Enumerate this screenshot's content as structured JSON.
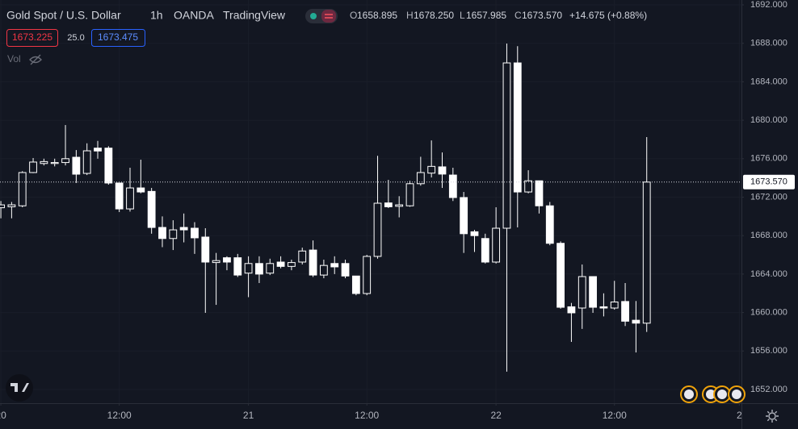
{
  "chart_data": {
    "type": "candlestick",
    "header": {
      "symbol": "Gold Spot / U.S. Dollar",
      "interval": "1h",
      "exchange": "OANDA",
      "source": "TradingView",
      "open_key": "O",
      "open": "1658.895",
      "high_key": "H",
      "high": "1678.250",
      "low_key": "L",
      "low": "1657.985",
      "close_key": "C",
      "close": "1673.570",
      "change": "+14.675 (+0.88%)"
    },
    "bid": "1673.225",
    "spread": "25.0",
    "ask": "1673.475",
    "volume_label": "Vol",
    "current_price": {
      "value": 1673.57,
      "label": "1673.570"
    },
    "open": [
      1670.9,
      1671.0,
      1671.1,
      1674.56,
      1675.5,
      1675.5,
      1675.6,
      1676.15,
      1674.47,
      1677.1,
      1677.1,
      1673.47,
      1670.78,
      1672.96,
      1672.6,
      1668.85,
      1667.7,
      1668.85,
      1668.77,
      1667.85,
      1665.2,
      1665.7,
      1665.7,
      1664.1,
      1665.1,
      1664.1,
      1665.25,
      1664.8,
      1665.25,
      1666.5,
      1663.9,
      1665.1,
      1665.1,
      1663.8,
      1661.98,
      1665.84,
      1671.4,
      1671.05,
      1671.1,
      1673.4,
      1674.5,
      1675.15,
      1674.3,
      1671.96,
      1668.4,
      1667.7,
      1665.25,
      1668.77,
      1685.96,
      1672.54,
      1673.7,
      1671.1,
      1667.2,
      1660.6,
      1660.47,
      1663.74,
      1660.6,
      1660.47,
      1661.15,
      1659.2,
      1658.895
    ],
    "high": [
      1671.6,
      1671.5,
      1674.7,
      1676.07,
      1676.0,
      1676.0,
      1679.5,
      1676.9,
      1677.6,
      1677.85,
      1677.3,
      1673.47,
      1675.06,
      1675.9,
      1672.96,
      1670.0,
      1669.6,
      1670.3,
      1669.4,
      1668.77,
      1666.2,
      1665.85,
      1666.1,
      1665.85,
      1665.85,
      1665.6,
      1665.85,
      1665.5,
      1666.75,
      1667.5,
      1665.5,
      1665.85,
      1665.5,
      1663.8,
      1666.0,
      1676.3,
      1673.8,
      1672.1,
      1673.7,
      1676.2,
      1677.9,
      1676.65,
      1675.06,
      1672.54,
      1668.6,
      1668.2,
      1670.95,
      1687.97,
      1687.7,
      1674.8,
      1673.7,
      1671.5,
      1667.4,
      1661.0,
      1665.0,
      1663.74,
      1662.0,
      1663.3,
      1663.07,
      1661.2,
      1678.25
    ],
    "low": [
      1669.8,
      1669.8,
      1670.95,
      1674.5,
      1675.3,
      1675.2,
      1675.3,
      1673.47,
      1674.3,
      1676.0,
      1673.3,
      1670.45,
      1670.5,
      1672.4,
      1668.2,
      1666.8,
      1666.5,
      1667.3,
      1666.1,
      1659.97,
      1660.8,
      1664.4,
      1663.7,
      1661.6,
      1663.07,
      1663.9,
      1664.6,
      1664.4,
      1665.0,
      1663.7,
      1663.57,
      1664.0,
      1663.57,
      1661.8,
      1661.8,
      1665.6,
      1670.87,
      1669.9,
      1671.0,
      1673.2,
      1674.05,
      1672.96,
      1671.6,
      1666.2,
      1666.3,
      1665.1,
      1665.1,
      1653.85,
      1668.85,
      1672.4,
      1670.3,
      1667.0,
      1660.4,
      1656.95,
      1658.3,
      1659.97,
      1659.6,
      1660.3,
      1658.6,
      1655.85,
      1657.985
    ],
    "close": [
      1671.2,
      1671.2,
      1674.56,
      1675.65,
      1675.7,
      1675.6,
      1676.0,
      1674.39,
      1676.82,
      1676.8,
      1673.47,
      1670.78,
      1672.96,
      1672.54,
      1668.85,
      1667.7,
      1668.6,
      1668.6,
      1667.77,
      1665.25,
      1665.4,
      1665.25,
      1663.9,
      1665.1,
      1664.0,
      1665.1,
      1664.8,
      1665.2,
      1666.4,
      1663.9,
      1664.9,
      1664.75,
      1663.8,
      1661.98,
      1665.84,
      1671.37,
      1671.0,
      1671.2,
      1673.4,
      1674.56,
      1675.2,
      1674.4,
      1671.96,
      1668.2,
      1668.0,
      1665.25,
      1668.77,
      1685.96,
      1672.54,
      1673.7,
      1671.1,
      1667.2,
      1660.55,
      1659.97,
      1663.74,
      1660.55,
      1660.47,
      1661.1,
      1659.1,
      1658.9,
      1673.57
    ],
    "up_fill": "#131722",
    "down_fill": "#ffffff",
    "wick_color": "#ffffff",
    "xlim": [
      -0.08,
      68.8
    ],
    "xticks": [
      {
        "value": 0,
        "label": "20"
      },
      {
        "value": 11,
        "label": "12:00"
      },
      {
        "value": 23,
        "label": "21"
      },
      {
        "value": 34,
        "label": "12:00"
      },
      {
        "value": 46,
        "label": "22"
      },
      {
        "value": 57,
        "label": "12:00"
      },
      {
        "value": 68.6,
        "label": "2"
      }
    ],
    "ylim": [
      1650.574,
      1692.503
    ],
    "yticks": [
      {
        "value": 1652,
        "label": "1652.000"
      },
      {
        "value": 1656,
        "label": "1656.000"
      },
      {
        "value": 1660,
        "label": "1660.000"
      },
      {
        "value": 1664,
        "label": "1664.000"
      },
      {
        "value": 1668,
        "label": "1668.000"
      },
      {
        "value": 1672,
        "label": "1672.000"
      },
      {
        "value": 1676,
        "label": "1676.000"
      },
      {
        "value": 1680,
        "label": "1680.000"
      },
      {
        "value": 1684,
        "label": "1684.000"
      },
      {
        "value": 1688,
        "label": "1688.000"
      },
      {
        "value": 1692,
        "label": "1692.000"
      }
    ],
    "grid": true
  }
}
